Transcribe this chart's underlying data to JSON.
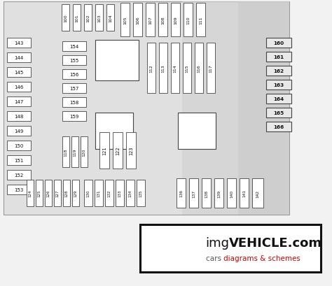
{
  "bg_color": "#f2f2f2",
  "diagram_bg": "#dcdcdc",
  "silver_bg": "#cccccc",
  "fuse_fill": "#ffffff",
  "fuse_edge": "#444444",
  "relay_fill": "#ffffff",
  "relay_edge": "#444444",
  "text_color": "#111111",
  "watermark_border": "#111111",
  "watermark_main": "#111111",
  "watermark_sub_black": "#555555",
  "watermark_sub_red": "#cc0000",
  "top_row_a": [
    "100",
    "101",
    "102",
    "103",
    "104"
  ],
  "top_row_b": [
    "105",
    "106",
    "107",
    "108",
    "109",
    "110",
    "111"
  ],
  "left_col": [
    "143",
    "144",
    "145",
    "146",
    "147",
    "148",
    "149",
    "150",
    "151",
    "152",
    "153"
  ],
  "mid_left": [
    "154",
    "155",
    "156",
    "157",
    "158",
    "159"
  ],
  "mid_fuse": [
    "112",
    "113",
    "114",
    "115",
    "116",
    "117"
  ],
  "right_col": [
    "160",
    "161",
    "162",
    "163",
    "164",
    "165",
    "166"
  ],
  "mid_small": [
    "118",
    "119",
    "120"
  ],
  "mid_big": [
    "121",
    "122",
    "123"
  ],
  "bot_left": [
    "124",
    "125",
    "126",
    "127",
    "128",
    "129",
    "130",
    "131",
    "132",
    "133",
    "134",
    "135"
  ],
  "bot_right": [
    "136",
    "137",
    "138",
    "139",
    "140",
    "141",
    "142"
  ],
  "wm_prefix": "img",
  "wm_bold": "VEHICLE.com",
  "wm_black": "cars ",
  "wm_red": "diagrams & schemes"
}
